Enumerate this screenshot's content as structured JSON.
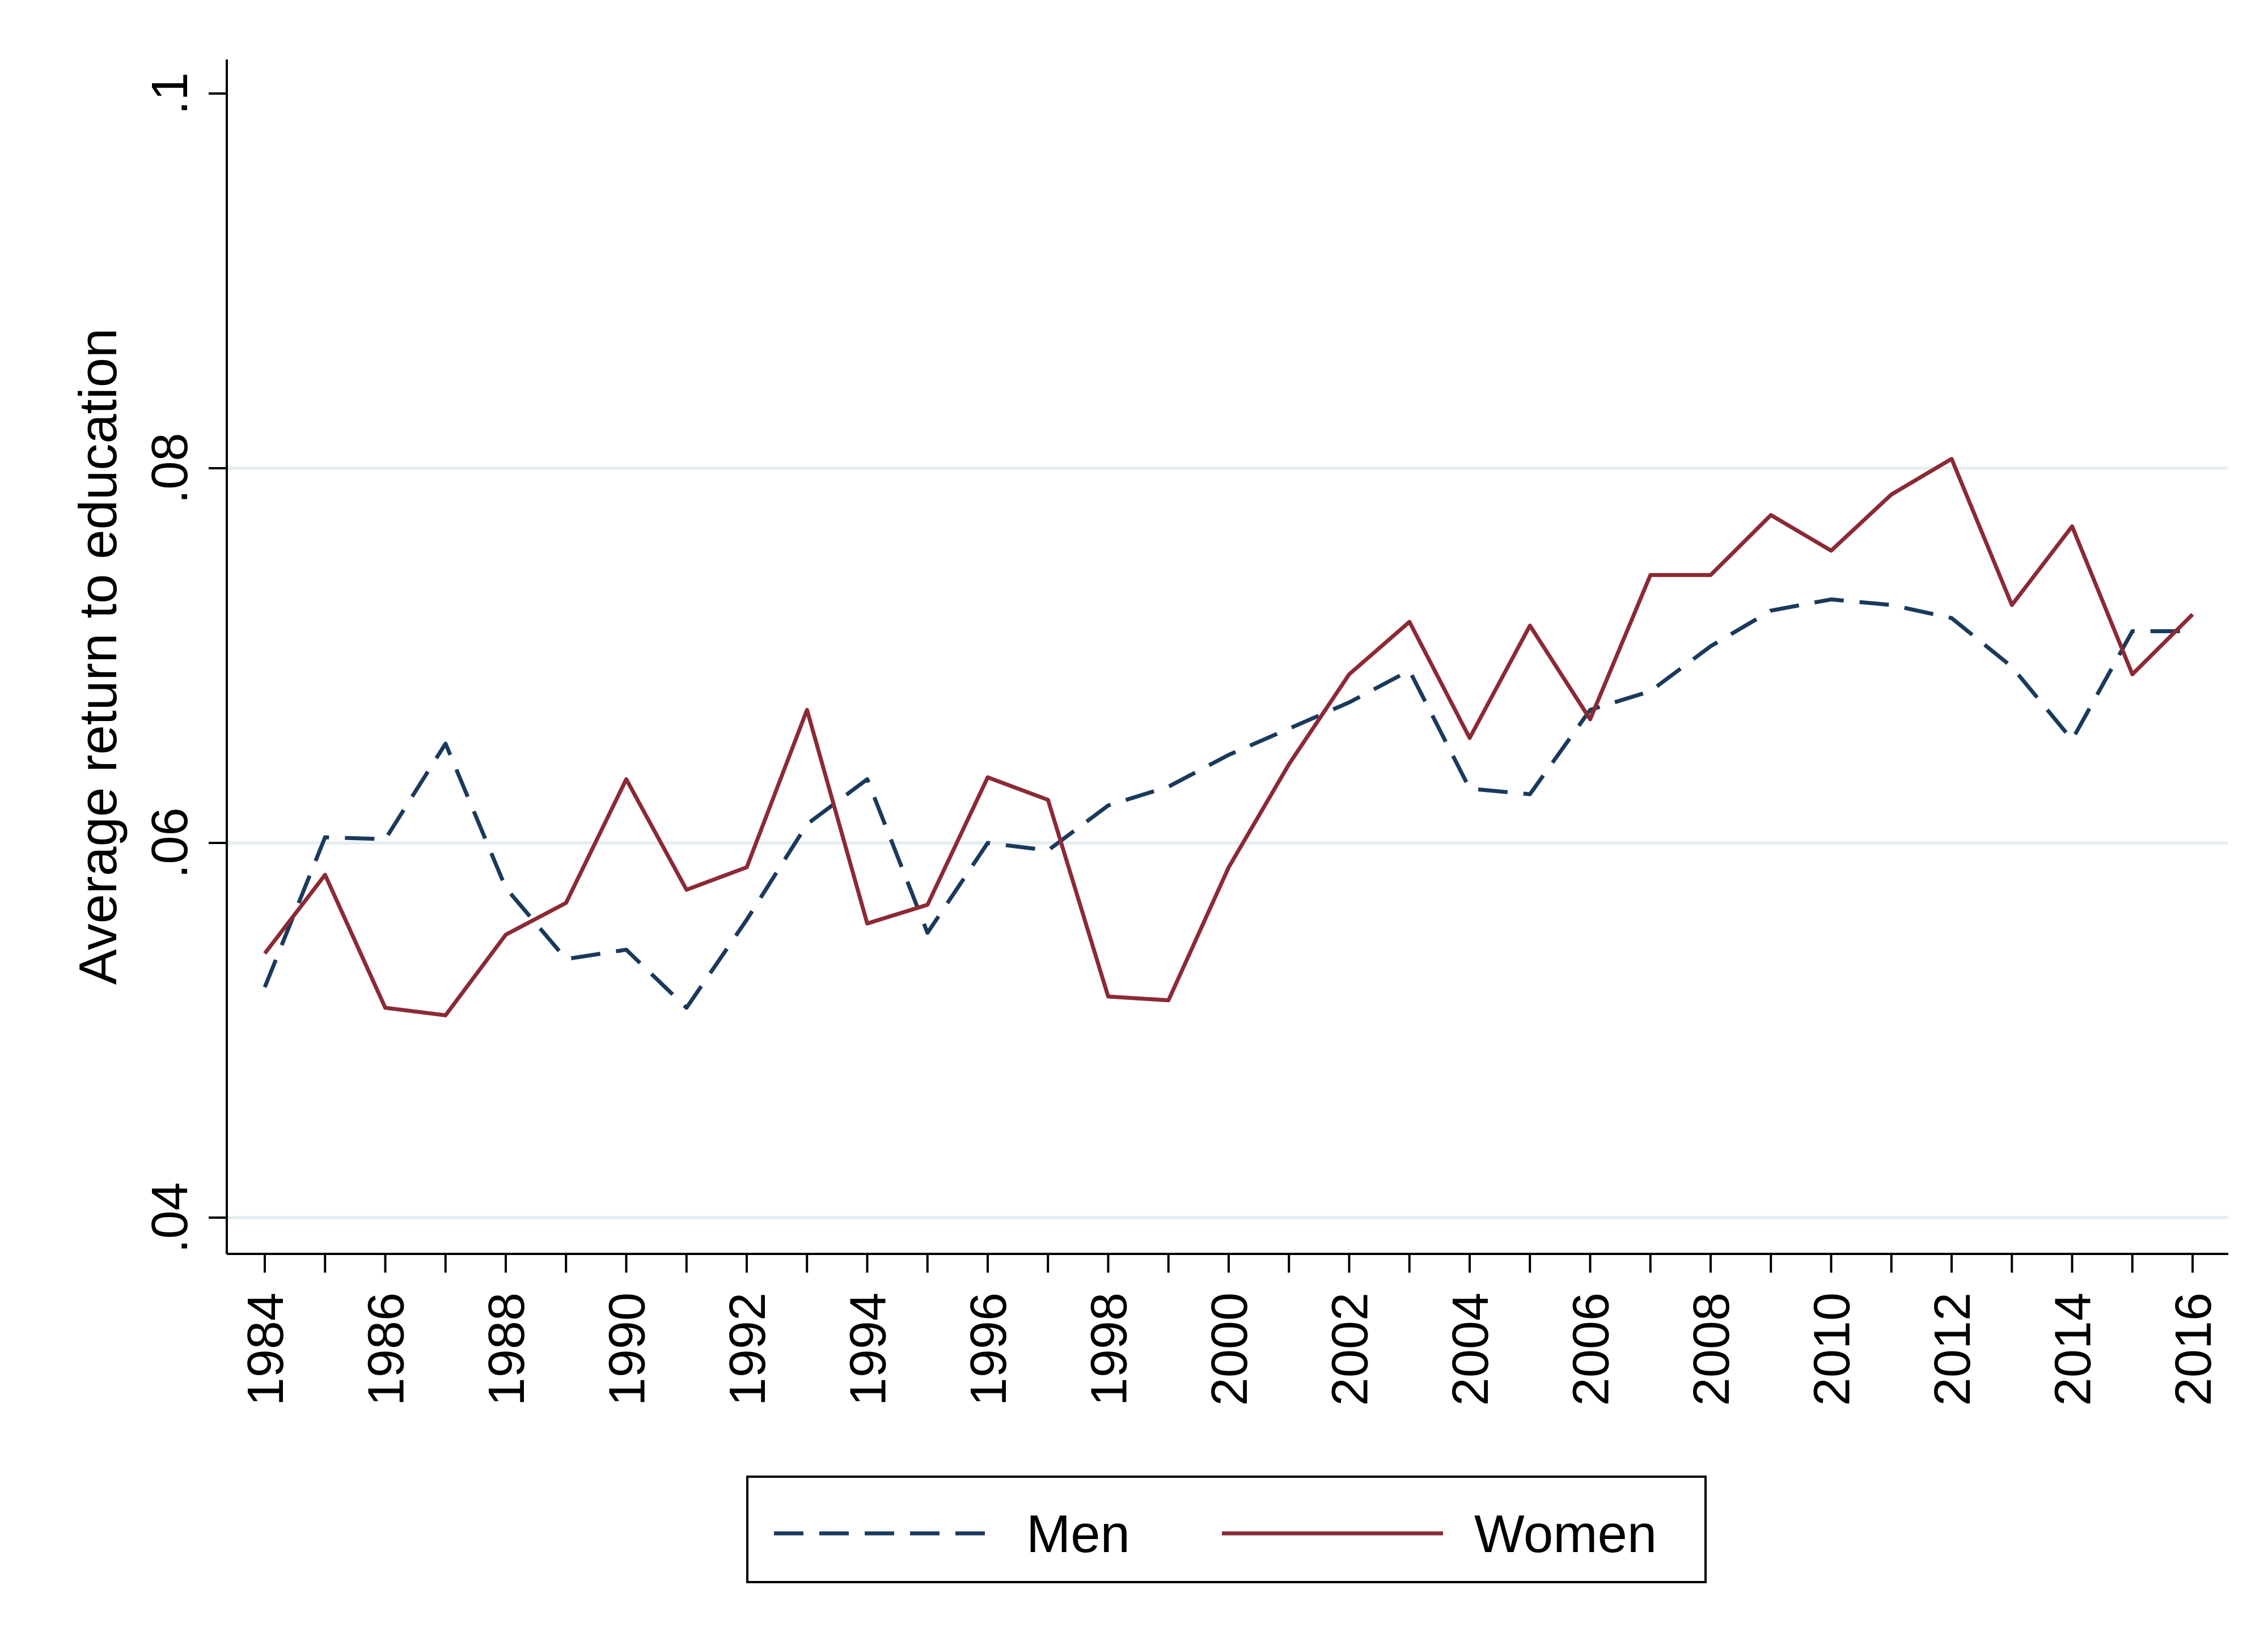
{
  "chart_data": {
    "type": "line",
    "title": "",
    "xlabel": "",
    "ylabel": "Average return to education",
    "x": [
      1984,
      1985,
      1986,
      1987,
      1988,
      1989,
      1990,
      1991,
      1992,
      1993,
      1994,
      1995,
      1996,
      1997,
      1998,
      1999,
      2000,
      2001,
      2002,
      2003,
      2004,
      2005,
      2006,
      2007,
      2008,
      2009,
      2010,
      2011,
      2012,
      2013,
      2014,
      2015,
      2016
    ],
    "xticks": [
      "1984",
      "1986",
      "1988",
      "1990",
      "1992",
      "1994",
      "1996",
      "1998",
      "2000",
      "2002",
      "2004",
      "2006",
      "2008",
      "2010",
      "2012",
      "2014",
      "2016"
    ],
    "yticks": [
      ".04",
      ".06",
      ".08",
      ".1"
    ],
    "ylim": [
      0.04,
      0.1
    ],
    "grid": true,
    "legend_position": "bottom",
    "series": [
      {
        "name": "Men",
        "style": "dashed",
        "color": "#1a3a5c",
        "values": [
          0.0523,
          0.0603,
          0.0602,
          0.0653,
          0.0576,
          0.0538,
          0.0543,
          0.0512,
          0.0559,
          0.061,
          0.0634,
          0.0552,
          0.06,
          0.0596,
          0.062,
          0.063,
          0.0647,
          0.0661,
          0.0675,
          0.0692,
          0.0629,
          0.0626,
          0.0671,
          0.0681,
          0.0705,
          0.0724,
          0.073,
          0.0727,
          0.072,
          0.0694,
          0.0655,
          0.0713,
          0.0713
        ]
      },
      {
        "name": "Women",
        "style": "solid",
        "color": "#8b2a35",
        "values": [
          0.0541,
          0.0583,
          0.0512,
          0.0508,
          0.0551,
          0.0568,
          0.0634,
          0.0575,
          0.0587,
          0.0671,
          0.0557,
          0.0567,
          0.0635,
          0.0623,
          0.0518,
          0.0516,
          0.0587,
          0.0642,
          0.069,
          0.0718,
          0.0656,
          0.0716,
          0.0666,
          0.0743,
          0.0743,
          0.0775,
          0.0756,
          0.0786,
          0.0805,
          0.0727,
          0.0769,
          0.069,
          0.0722
        ]
      }
    ]
  }
}
